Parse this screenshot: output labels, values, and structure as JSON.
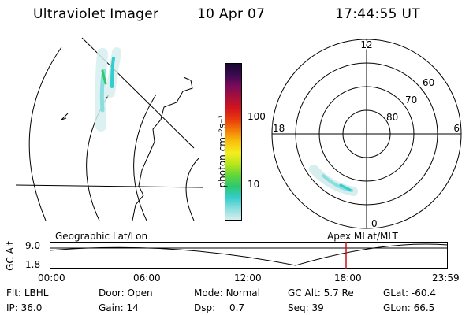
{
  "header": {
    "instrument": "Ultraviolet Imager",
    "date": "10 Apr 07",
    "time": "17:44:55 UT"
  },
  "colorbar": {
    "unit_label": "photon cm⁻²s⁻¹",
    "ticks": [
      "100",
      "10"
    ],
    "colors_top_to_bottom": [
      "#1a0a2e",
      "#3a0a50",
      "#7a0a5a",
      "#a8103a",
      "#d2141e",
      "#e83a0c",
      "#f47e08",
      "#f8c20c",
      "#f4ee1e",
      "#b8e61a",
      "#62d63a",
      "#2ec86e",
      "#34cccc",
      "#8adede",
      "#d6eeee"
    ]
  },
  "polar_plot": {
    "mlt_labels": {
      "top": "12",
      "left": "18",
      "right": "6",
      "bottom": "0"
    },
    "lat_labels": [
      "60",
      "70",
      "80"
    ]
  },
  "timeline": {
    "left_title": "Geographic Lat/Lon",
    "right_title": "Apex  MLat/MLT",
    "axis_label": "GC Alt",
    "y_ticks": [
      "9.0",
      "1.8"
    ],
    "x_ticks": [
      "00:00",
      "06:00",
      "12:00",
      "18:00",
      "23:59"
    ],
    "marker_color": "#d01010"
  },
  "info": {
    "row1": [
      {
        "label": "Flt:",
        "value": "LBHL"
      },
      {
        "label": "Door:",
        "value": "Open"
      },
      {
        "label": "Mode:",
        "value": "Normal"
      },
      {
        "label": "GC Alt:",
        "value": "5.7 Re"
      },
      {
        "label": "GLat:",
        "value": "-60.4"
      }
    ],
    "row2": [
      {
        "label": "IP:",
        "value": "36.0"
      },
      {
        "label": "Gain:",
        "value": "14"
      },
      {
        "label": "Dsp:",
        "value": "0.7"
      },
      {
        "label": "Seq:",
        "value": "39"
      },
      {
        "label": "GLon:",
        "value": "66.5"
      }
    ]
  }
}
